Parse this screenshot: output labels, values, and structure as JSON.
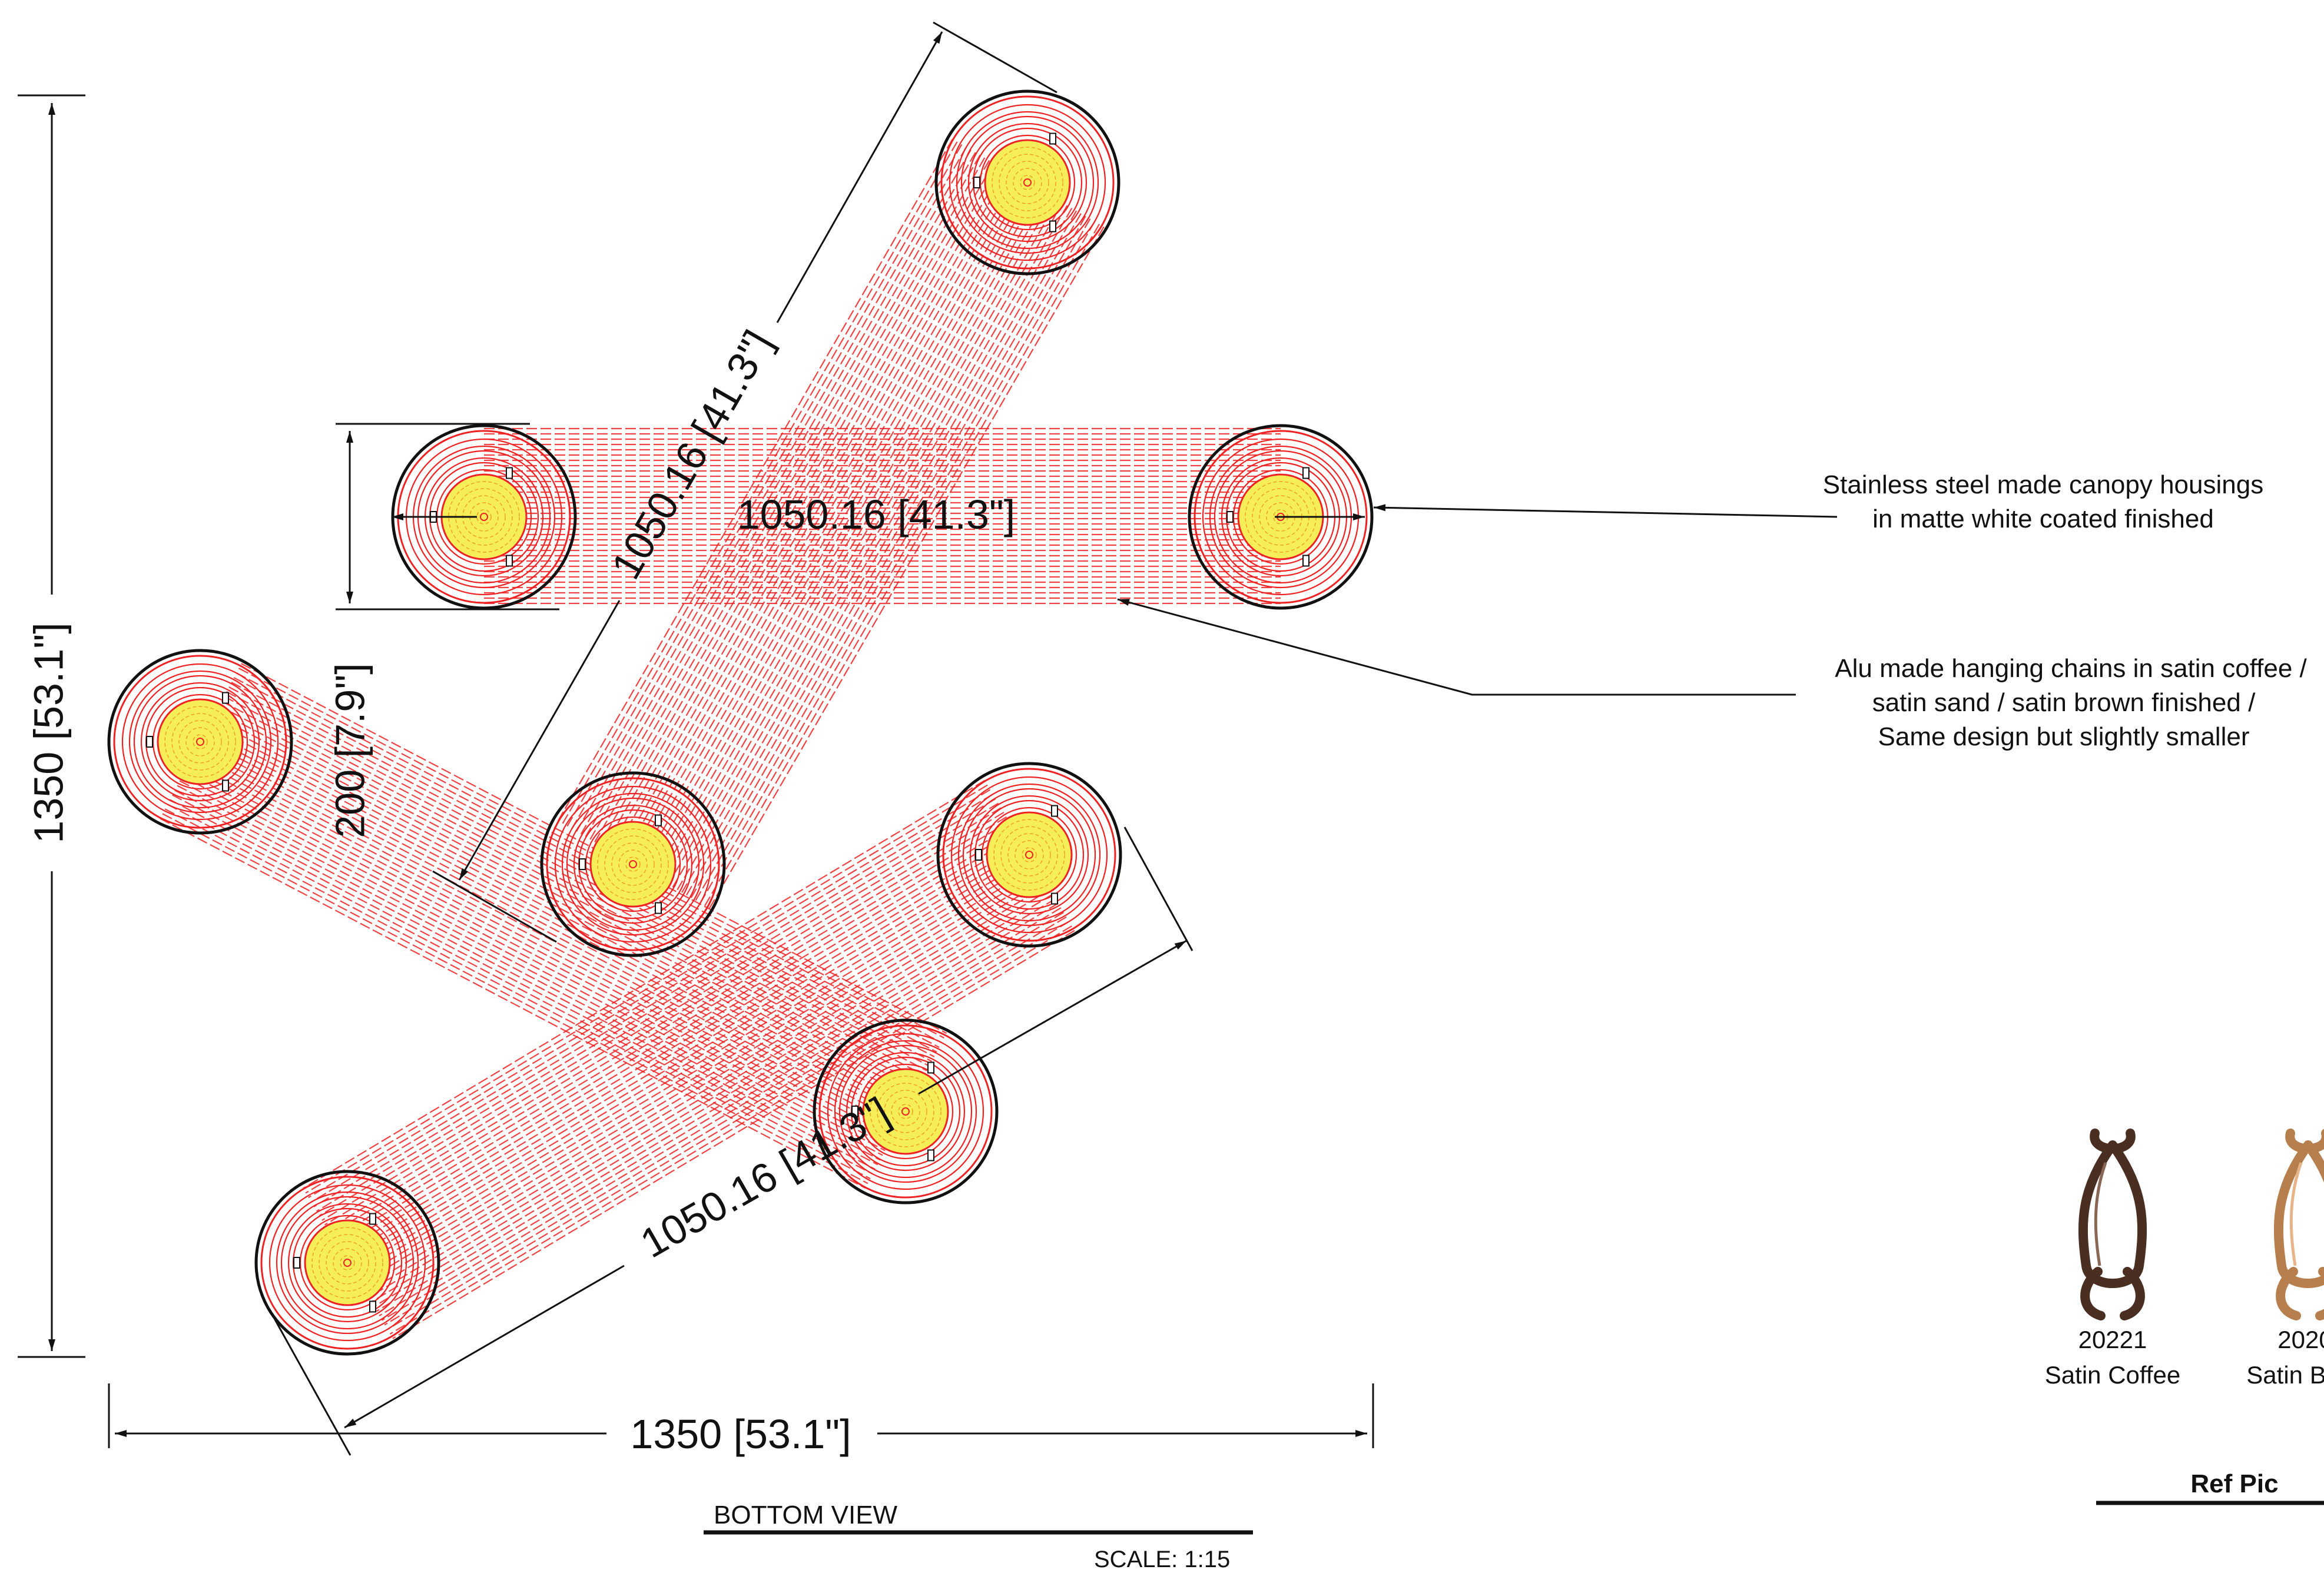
{
  "dimensions": {
    "overall_height": "1350 [53.1\"]",
    "overall_width": "1350 [53.1\"]",
    "spacing": "200 [7.9\"]",
    "horizontal_bar_length": "1050.16 [41.3\"]",
    "diagonal_up_length": "1050.16 [41.3\"]",
    "diagonal_lower_length": "1050.16 [41.3\"]"
  },
  "notes": {
    "canopy_line1": "Stainless steel made canopy housings",
    "canopy_line2": "in matte white coated finished",
    "chain_line1": "Alu made hanging chains in satin coffee  /",
    "chain_line2": "satin sand / satin brown  finished /",
    "chain_line3": "Same design but slightly smaller"
  },
  "view": {
    "title": "BOTTOM VIEW",
    "scale": "SCALE: 1:15"
  },
  "ref_pic": {
    "title": "Ref Pic",
    "swatches": [
      {
        "code": "20221",
        "name": "Satin Coffee",
        "color": "#4a2e22",
        "highlight": "#8a6656"
      },
      {
        "code": "2020",
        "name": "Satin Br",
        "color": "#b87f4e",
        "highlight": "#e6b488"
      }
    ]
  },
  "colors": {
    "chain_red": "#ee2222",
    "light_yellow": "#f6ee58",
    "outline": "#111111"
  }
}
